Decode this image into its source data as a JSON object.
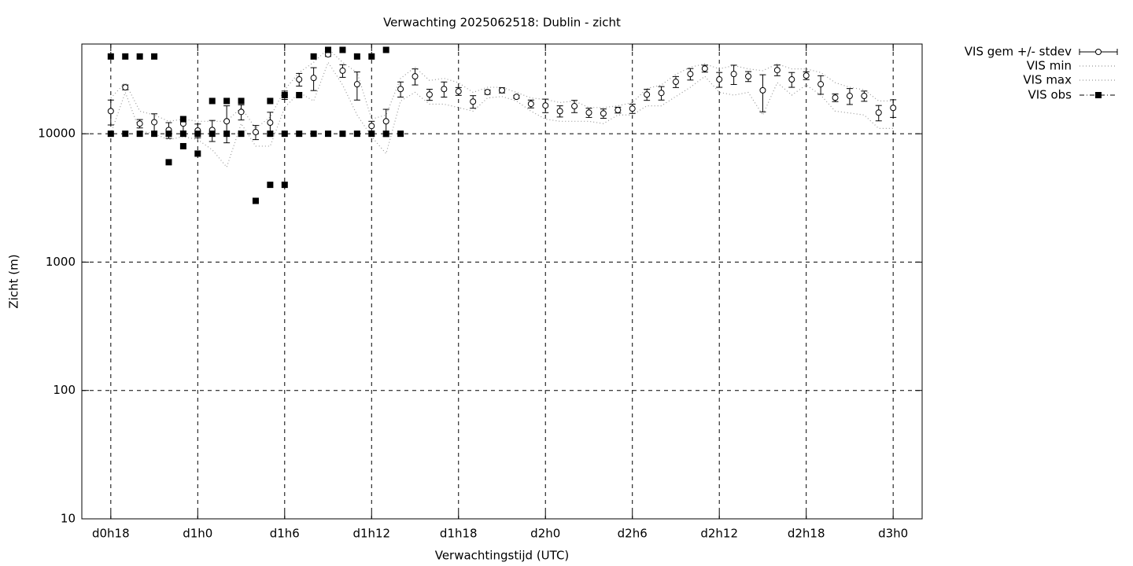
{
  "chart_data": {
    "type": "errorbar",
    "title": "Verwachting 2025062518: Dublin - zicht",
    "x_label": "Verwachtingstijd (UTC)",
    "y_label": "Zicht (m)",
    "log_y": true,
    "grid": true,
    "legend": "outside-top-right",
    "xlim": [
      16,
      74
    ],
    "ylim": [
      10,
      50000
    ],
    "xticks": [
      {
        "value": 18,
        "label": "d0h18"
      },
      {
        "value": 24,
        "label": "d1h0"
      },
      {
        "value": 30,
        "label": "d1h6"
      },
      {
        "value": 36,
        "label": "d1h12"
      },
      {
        "value": 42,
        "label": "d1h18"
      },
      {
        "value": 48,
        "label": "d2h0"
      },
      {
        "value": 54,
        "label": "d2h6"
      },
      {
        "value": 60,
        "label": "d2h12"
      },
      {
        "value": 66,
        "label": "d2h18"
      },
      {
        "value": 72,
        "label": "d3h0"
      }
    ],
    "yticks": [
      10,
      100,
      1000,
      10000
    ],
    "x": [
      18,
      19,
      20,
      21,
      22,
      23,
      24,
      25,
      26,
      27,
      28,
      29,
      30,
      31,
      32,
      33,
      34,
      35,
      36,
      37,
      38,
      39,
      40,
      41,
      42,
      43,
      44,
      45,
      46,
      47,
      48,
      49,
      50,
      51,
      52,
      53,
      54,
      55,
      56,
      57,
      58,
      59,
      60,
      61,
      62,
      63,
      64,
      65,
      66,
      67,
      68,
      69,
      70,
      71,
      72
    ],
    "series": [
      {
        "name": "VIS gem +/- stdev",
        "color": "#000000",
        "values": [
          15000,
          23000,
          12000,
          12300,
          10700,
          12000,
          10600,
          10700,
          12500,
          14800,
          10300,
          12200,
          20000,
          26500,
          27200,
          41500,
          31000,
          24300,
          11500,
          12500,
          22300,
          28000,
          20200,
          22300,
          21400,
          17800,
          21100,
          21800,
          19400,
          17100,
          16600,
          15000,
          16400,
          14600,
          14400,
          15300,
          15700,
          20200,
          20800,
          25400,
          29200,
          32200,
          26500,
          29200,
          28000,
          21800,
          31300,
          26500,
          28400,
          24300,
          19100,
          19700,
          19700,
          14600,
          15900
        ],
        "stdev": [
          3300,
          1000,
          900,
          2000,
          1500,
          1500,
          1300,
          2000,
          4000,
          2000,
          1300,
          2500,
          1500,
          3000,
          5500,
          1500,
          3500,
          6000,
          1000,
          3000,
          3000,
          4000,
          2000,
          3000,
          1500,
          2000,
          800,
          1000,
          500,
          1200,
          2000,
          1500,
          1800,
          1200,
          1200,
          800,
          1300,
          2000,
          2500,
          2500,
          3000,
          2000,
          3500,
          5000,
          2500,
          7000,
          3000,
          3500,
          2000,
          4000,
          1300,
          2800,
          1800,
          2000,
          2500
        ]
      },
      {
        "name": "VIS min",
        "color": "#999999",
        "values": [
          10000,
          21000,
          10500,
          10000,
          9000,
          9500,
          9000,
          7500,
          5500,
          12000,
          8000,
          8000,
          16000,
          21000,
          18000,
          36000,
          24000,
          14000,
          9500,
          7000,
          18000,
          21000,
          17000,
          17000,
          16000,
          15000,
          19000,
          19500,
          18000,
          15000,
          13000,
          12500,
          12500,
          12500,
          12000,
          14000,
          14000,
          16500,
          16500,
          19500,
          23000,
          28000,
          21000,
          20000,
          21000,
          14000,
          25000,
          20000,
          24000,
          20000,
          15000,
          14500,
          14000,
          11000,
          11000
        ]
      },
      {
        "name": "VIS max",
        "color": "#999999",
        "values": [
          19000,
          25000,
          15000,
          14000,
          12500,
          13000,
          12500,
          12500,
          12500,
          16000,
          11000,
          13500,
          22000,
          30000,
          36000,
          46000,
          36000,
          30000,
          13000,
          14000,
          27000,
          33000,
          26000,
          27000,
          25000,
          21000,
          23000,
          23000,
          21000,
          19000,
          18500,
          17500,
          18000,
          16000,
          16000,
          16500,
          17500,
          22500,
          24000,
          29000,
          33000,
          35000,
          32000,
          34000,
          32000,
          31000,
          35000,
          32000,
          32000,
          30000,
          25000,
          23000,
          22000,
          18000,
          18000
        ]
      },
      {
        "name": "VIS obs",
        "color": "#000000",
        "x": [
          18,
          18,
          19,
          19,
          20,
          20,
          21,
          21,
          22,
          22,
          23,
          23,
          23,
          24,
          24,
          25,
          25,
          26,
          26,
          27,
          27,
          28,
          29,
          29,
          29,
          30,
          30,
          30,
          31,
          31,
          32,
          32,
          33,
          33,
          34,
          34,
          35,
          35,
          36,
          36,
          37,
          37,
          38
        ],
        "values": [
          40000,
          10000,
          40000,
          10000,
          40000,
          10000,
          40000,
          10000,
          10000,
          6000,
          13000,
          10000,
          8000,
          10000,
          7000,
          18000,
          10000,
          18000,
          10000,
          18000,
          10000,
          3000,
          18000,
          10000,
          4000,
          20000,
          10000,
          4000,
          20000,
          10000,
          40000,
          10000,
          45000,
          10000,
          45000,
          10000,
          40000,
          10000,
          40000,
          10000,
          45000,
          10000,
          10000
        ]
      }
    ]
  }
}
